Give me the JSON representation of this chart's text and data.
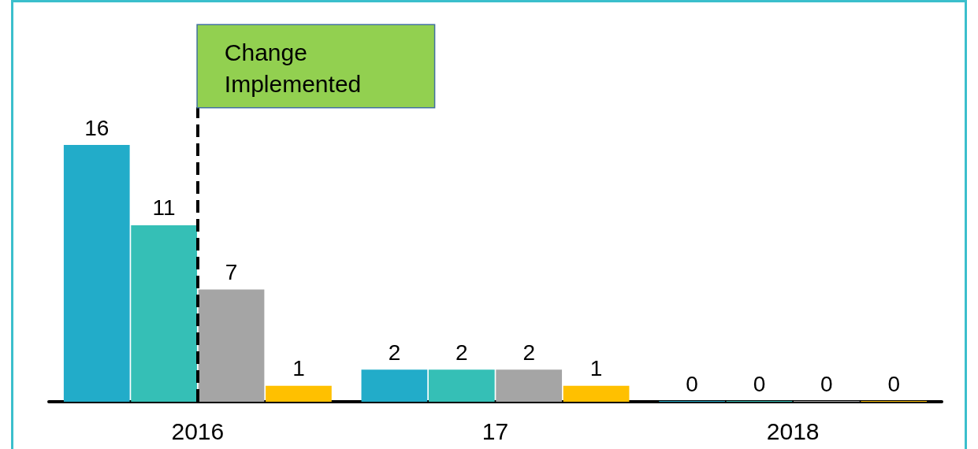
{
  "chart_data": {
    "type": "bar",
    "categories": [
      "2016",
      "17",
      "2018"
    ],
    "series": [
      {
        "color": "#22acc9",
        "values": [
          16,
          2,
          0
        ]
      },
      {
        "color": "#35bfb6",
        "values": [
          11,
          2,
          0
        ]
      },
      {
        "color": "#a5a5a5",
        "values": [
          7,
          2,
          0
        ]
      },
      {
        "color": "#ffc000",
        "values": [
          1,
          1,
          0
        ]
      }
    ],
    "data_labels": true,
    "grid": false,
    "ref_lines": [
      {
        "axis": "x",
        "value": "2016",
        "label": "Change Implemented",
        "color": "#000000",
        "line_style": "dashed"
      }
    ]
  }
}
